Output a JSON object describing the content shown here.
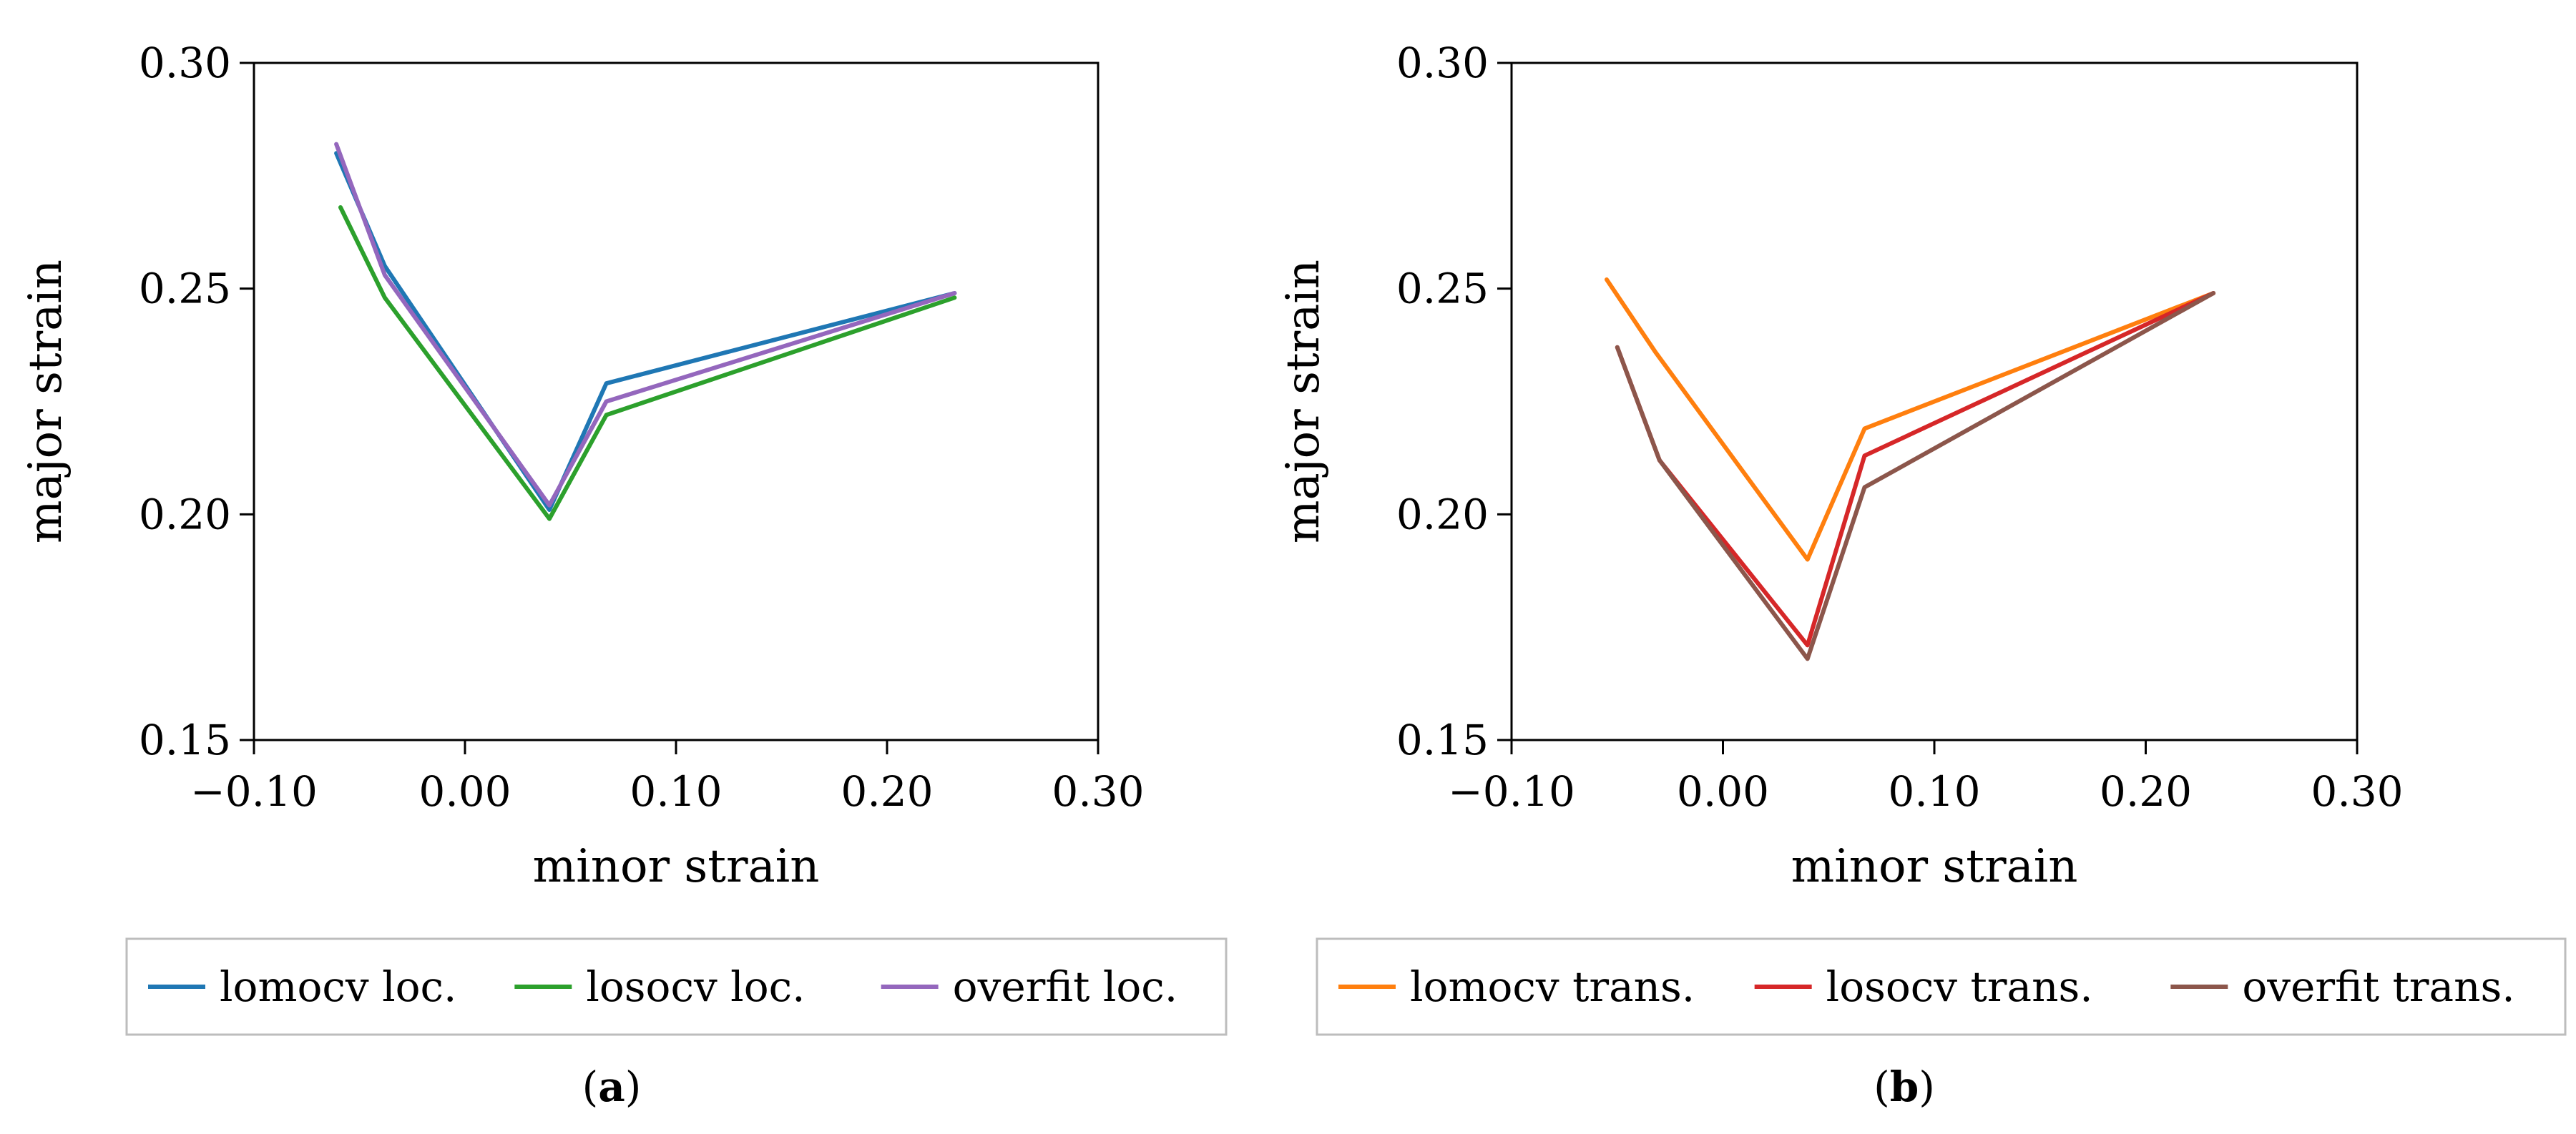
{
  "chart_data": [
    {
      "type": "line",
      "caption": "a",
      "xlabel": "minor strain",
      "ylabel": "major strain",
      "xlim": [
        -0.1,
        0.3
      ],
      "ylim": [
        0.15,
        0.3
      ],
      "xticks": [
        "−0.10",
        "0.00",
        "0.10",
        "0.20",
        "0.30"
      ],
      "yticks": [
        "0.15",
        "0.20",
        "0.25",
        "0.30"
      ],
      "series": [
        {
          "name": "lomocv loc.",
          "color": "#1f77b4",
          "x": [
            -0.061,
            -0.038,
            0.04,
            0.067,
            0.232
          ],
          "y": [
            0.28,
            0.255,
            0.201,
            0.229,
            0.249
          ]
        },
        {
          "name": "losocv loc.",
          "color": "#2ca02c",
          "x": [
            -0.059,
            -0.038,
            0.04,
            0.067,
            0.232
          ],
          "y": [
            0.268,
            0.248,
            0.199,
            0.222,
            0.248
          ]
        },
        {
          "name": "overfit loc.",
          "color": "#9467bd",
          "x": [
            -0.061,
            -0.038,
            0.04,
            0.067,
            0.232
          ],
          "y": [
            0.282,
            0.253,
            0.202,
            0.225,
            0.249
          ]
        }
      ]
    },
    {
      "type": "line",
      "caption": "b",
      "xlabel": "minor strain",
      "ylabel": "major strain",
      "xlim": [
        -0.1,
        0.3
      ],
      "ylim": [
        0.15,
        0.3
      ],
      "xticks": [
        "−0.10",
        "0.00",
        "0.10",
        "0.20",
        "0.30"
      ],
      "yticks": [
        "0.15",
        "0.20",
        "0.25",
        "0.30"
      ],
      "series": [
        {
          "name": "lomocv trans.",
          "color": "#ff7f0e",
          "x": [
            -0.055,
            -0.032,
            0.04,
            0.067,
            0.232
          ],
          "y": [
            0.252,
            0.236,
            0.19,
            0.219,
            0.249
          ]
        },
        {
          "name": "losocv trans.",
          "color": "#d62728",
          "x": [
            -0.05,
            -0.03,
            0.04,
            0.067,
            0.232
          ],
          "y": [
            0.237,
            0.212,
            0.171,
            0.213,
            0.249
          ]
        },
        {
          "name": "overfit trans.",
          "color": "#8c564b",
          "x": [
            -0.05,
            -0.03,
            0.04,
            0.067,
            0.232
          ],
          "y": [
            0.237,
            0.212,
            0.168,
            0.206,
            0.249
          ]
        }
      ]
    }
  ]
}
